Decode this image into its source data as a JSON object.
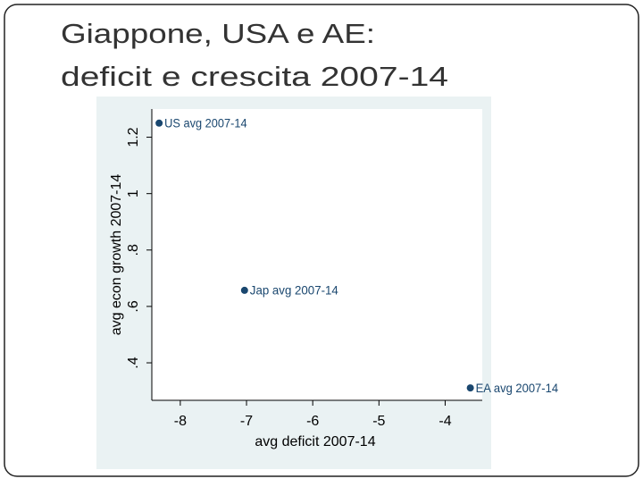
{
  "chart_data": {
    "type": "scatter",
    "title": [
      "Giappone, USA e AE:",
      "deficit e crescita 2007-14"
    ],
    "x_label": "avg deficit 2007-14",
    "y_label": "avg econ growth 2007-14",
    "series": [
      {
        "name": null,
        "color": "#1a476f",
        "x": [
          -8.32,
          -7.03,
          -3.62
        ],
        "values": [
          1.25,
          0.657,
          0.311
        ],
        "labels": [
          "US avg 2007-14",
          "Jap avg 2007-14",
          "EA avg 2007-14"
        ]
      }
    ],
    "xlim": [
      -8.43,
      -3.44
    ],
    "xticks": [
      -8,
      -7,
      -6,
      -5,
      -4
    ],
    "ylim": [
      0.267,
      1.3
    ],
    "yticks": [
      {
        "value": 0.4,
        "label": ".4"
      },
      {
        "value": 0.6,
        "label": ".6"
      },
      {
        "value": 0.8,
        "label": ".8"
      },
      1,
      1.2
    ],
    "grid": false
  }
}
